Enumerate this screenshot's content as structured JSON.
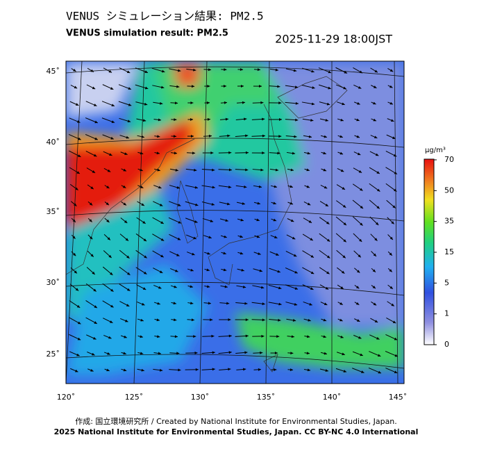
{
  "header": {
    "title": "VENUS シミュレーション結果: PM2.5",
    "subtitle": "VENUS simulation result: PM2.5",
    "timestamp": "2025-11-29 18:00JST"
  },
  "map": {
    "lat_labels": [
      "45˚",
      "40˚",
      "35˚",
      "30˚",
      "25˚"
    ],
    "lon_labels": [
      "120˚",
      "125˚",
      "130˚",
      "135˚",
      "140˚",
      "145˚"
    ]
  },
  "colorbar": {
    "unit": "μg/m³",
    "ticks": [
      0,
      1,
      5,
      15,
      35,
      50,
      70
    ]
  },
  "footer": {
    "line1": "作成: 国立環境研究所 / Created by National Institute for Environmental Studies, Japan.",
    "line2": "2025 National Institute for Environmental Studies, Japan. CC BY-NC 4.0 International"
  }
}
